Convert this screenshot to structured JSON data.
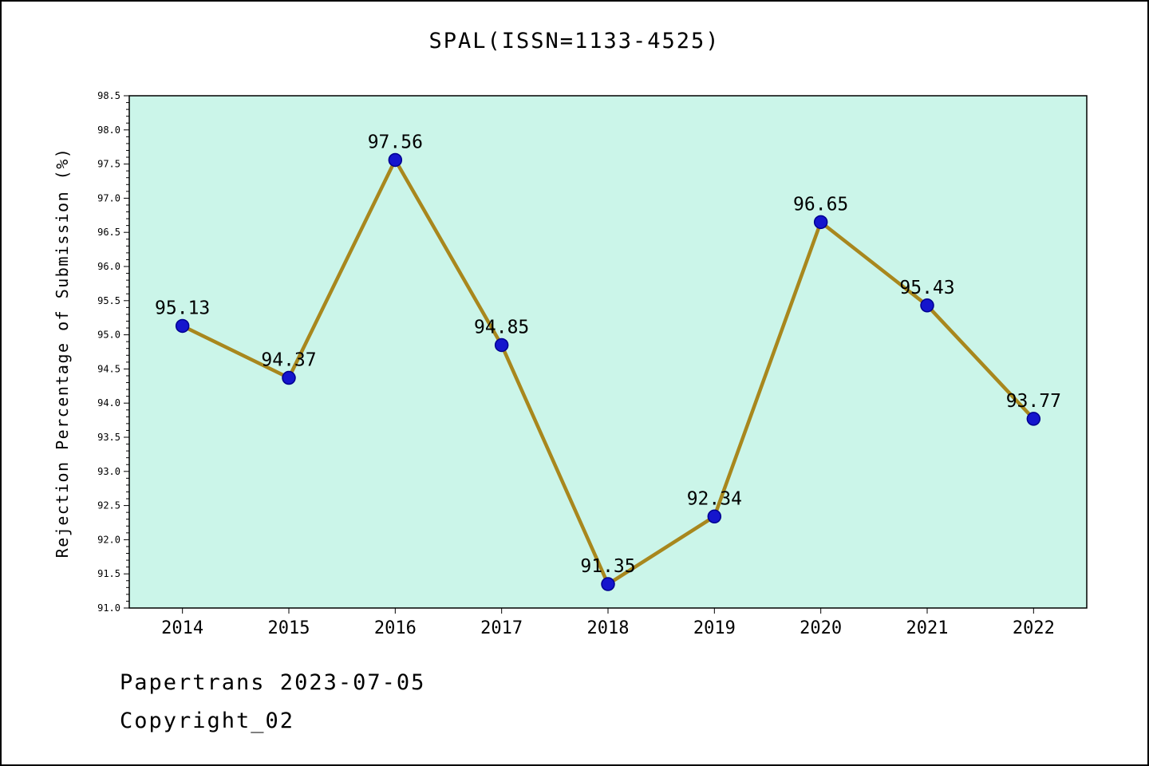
{
  "title": "SPAL(ISSN=1133-4525)",
  "footer": {
    "line1": "Papertrans 2023-07-05",
    "line2": "Copyright_02"
  },
  "chart_data": {
    "type": "line",
    "title": "SPAL(ISSN=1133-4525)",
    "x": [
      2014,
      2015,
      2016,
      2017,
      2018,
      2019,
      2020,
      2021,
      2022
    ],
    "values": [
      95.13,
      94.37,
      97.56,
      94.85,
      91.35,
      92.34,
      96.65,
      95.43,
      93.77
    ],
    "point_labels": [
      "95.13",
      "94.37",
      "97.56",
      "94.85",
      "91.35",
      "92.34",
      "96.65",
      "95.43",
      "93.77"
    ],
    "xlabel": "",
    "ylabel": "Rejection Percentage of Submission (%)",
    "xlim": [
      2013.5,
      2022.5
    ],
    "ylim": [
      91.0,
      98.5
    ],
    "ytick_step": 0.5,
    "ytick_minor_step": 0.1,
    "grid": false,
    "legend_position": "none",
    "colors": {
      "plot_bg": "#cbf5e9",
      "line": "#a8871d",
      "marker_fill": "#1515cd",
      "marker_edge": "#000090",
      "axis": "#000000",
      "text": "#000000"
    }
  }
}
